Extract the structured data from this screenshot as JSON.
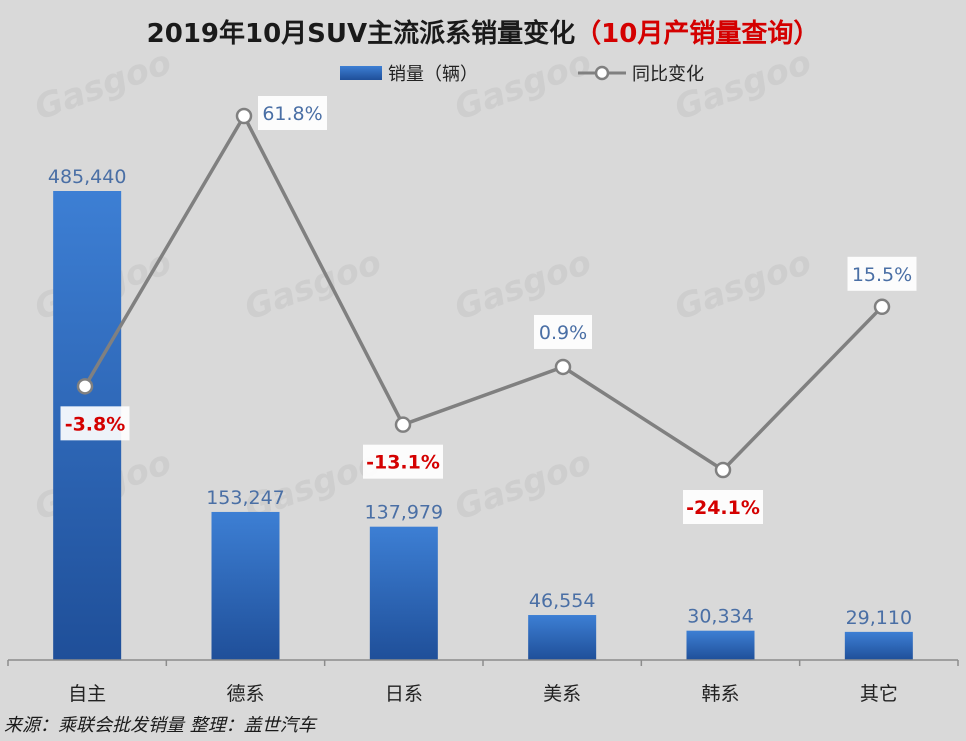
{
  "chart_data": {
    "type": "bar",
    "title": "2019年10月SUV主流派系销量变化",
    "title_highlight": "（10月产销量查询）",
    "categories": [
      "自主",
      "德系",
      "日系",
      "美系",
      "韩系",
      "其它"
    ],
    "series": [
      {
        "name": "销量（辆）",
        "type": "bar",
        "values": [
          485440,
          153247,
          137979,
          46554,
          30334,
          29110
        ],
        "labels": [
          "485,440",
          "153,247",
          "137,979",
          "46,554",
          "30,334",
          "29,110"
        ]
      },
      {
        "name": "同比变化",
        "type": "line",
        "values": [
          -3.8,
          61.8,
          -13.1,
          0.9,
          -24.1,
          15.5
        ],
        "labels": [
          "-3.8%",
          "61.8%",
          "-13.1%",
          "0.9%",
          "-24.1%",
          "15.5%"
        ]
      }
    ],
    "y_bar_range": [
      0,
      485440
    ],
    "y_line_range": [
      -30,
      70
    ],
    "grid": false,
    "legend_position": "top-center",
    "source": "来源：乘联会批发销量  整理：盖世汽车",
    "colors": {
      "bar": "#2f6cbf",
      "line": "#808080",
      "positive_label": "#4a6fa5",
      "negative_label": "#d40000",
      "title_highlight": "#d40000",
      "background": "#d9d9d9"
    }
  }
}
